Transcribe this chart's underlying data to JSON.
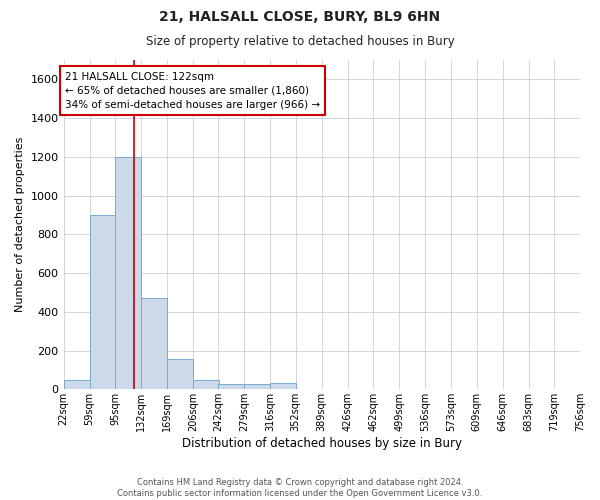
{
  "title": "21, HALSALL CLOSE, BURY, BL9 6HN",
  "subtitle": "Size of property relative to detached houses in Bury",
  "xlabel": "Distribution of detached houses by size in Bury",
  "ylabel": "Number of detached properties",
  "bar_color": "#ccd9e8",
  "bar_edge_color": "#7aa8cc",
  "background_color": "#ffffff",
  "grid_color": "#c8d0dc",
  "property_size": 122,
  "property_line_color": "#cc0000",
  "annotation_text": "21 HALSALL CLOSE: 122sqm\n← 65% of detached houses are smaller (1,860)\n34% of semi-detached houses are larger (966) →",
  "annotation_box_color": "#cc0000",
  "footer_line1": "Contains HM Land Registry data © Crown copyright and database right 2024.",
  "footer_line2": "Contains public sector information licensed under the Open Government Licence v3.0.",
  "bin_edges": [
    22,
    59,
    95,
    132,
    169,
    206,
    242,
    279,
    316,
    352,
    389,
    426,
    462,
    499,
    536,
    573,
    609,
    646,
    683,
    719,
    756
  ],
  "bin_counts": [
    50,
    900,
    1200,
    470,
    155,
    50,
    25,
    25,
    30,
    0,
    0,
    0,
    0,
    0,
    0,
    0,
    0,
    0,
    0,
    0
  ],
  "ylim": [
    0,
    1700
  ],
  "yticks": [
    0,
    200,
    400,
    600,
    800,
    1000,
    1200,
    1400,
    1600
  ]
}
